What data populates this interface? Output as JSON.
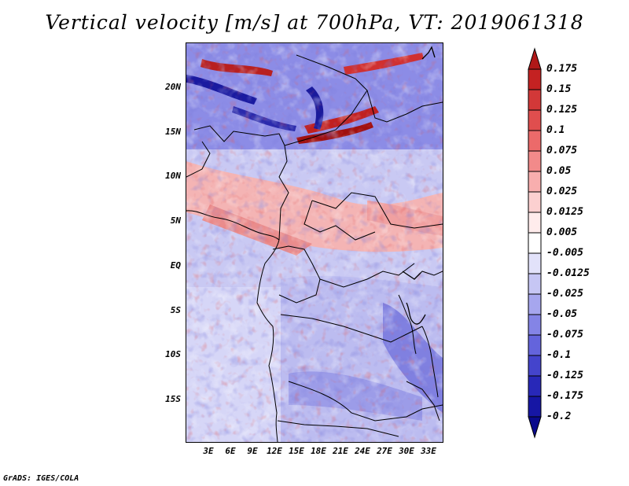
{
  "title": "Vertical velocity [m/s] at 700hPa, VT: 2019061318",
  "footer": "GrADS: IGES/COLA",
  "map": {
    "lat_ticks": [
      "20N",
      "15N",
      "10N",
      "5N",
      "EQ",
      "5S",
      "10S",
      "15S"
    ],
    "lon_ticks": [
      "3E",
      "6E",
      "9E",
      "12E",
      "15E",
      "18E",
      "21E",
      "24E",
      "27E",
      "30E",
      "33E"
    ]
  },
  "colorbar": {
    "labels": [
      "0.175",
      "0.15",
      "0.125",
      "0.1",
      "0.075",
      "0.05",
      "0.025",
      "0.0125",
      "0.005",
      "-0.005",
      "-0.0125",
      "-0.025",
      "-0.05",
      "-0.075",
      "-0.1",
      "-0.125",
      "-0.175",
      "-0.2"
    ],
    "colors": [
      "#b01818",
      "#c42222",
      "#d23838",
      "#e04e4e",
      "#ec6a6a",
      "#f28a8a",
      "#f8aeae",
      "#fcd0d0",
      "#ffecec",
      "#ffffff",
      "#e2e2fa",
      "#c6c6f4",
      "#a6a6ee",
      "#8484e6",
      "#6464dc",
      "#4444cc",
      "#2828b8",
      "#1616a4",
      "#0a0a8c"
    ]
  }
}
